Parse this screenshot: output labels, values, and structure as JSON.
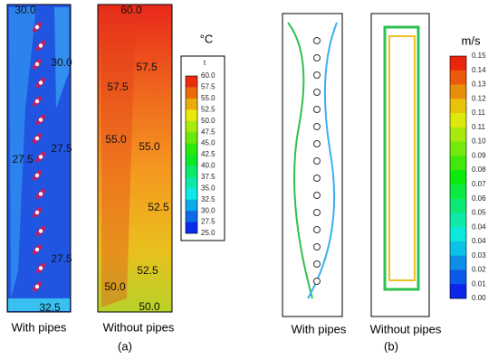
{
  "panels": [
    {
      "tag": "(a)",
      "colorbar": {
        "unit": "°C",
        "title": "t",
        "ticks": [
          "60.0",
          "57.5",
          "55.0",
          "52.5",
          "50.0",
          "47.5",
          "45.0",
          "42.5",
          "40.0",
          "37.5",
          "35.0",
          "32.5",
          "30.0",
          "27.5",
          "25.0"
        ]
      },
      "plots": [
        {
          "caption": "With pipes",
          "contour_labels": [
            "30.0",
            "30.0",
            "27.5",
            "27.5",
            "27.5",
            "32.5"
          ]
        },
        {
          "caption": "Without pipes",
          "contour_labels": [
            "60.0",
            "57.5",
            "57.5",
            "55.0",
            "55.0",
            "52.5",
            "52.5",
            "50.0",
            "50.0"
          ]
        }
      ]
    },
    {
      "tag": "(b)",
      "colorbar": {
        "unit": "m/s",
        "ticks": [
          "0.15",
          "0.14",
          "0.13",
          "0.12",
          "0.11",
          "0.11",
          "0.10",
          "0.09",
          "0.08",
          "0.07",
          "0.06",
          "0.05",
          "0.04",
          "0.04",
          "0.03",
          "0.02",
          "0.01",
          "0.00"
        ]
      },
      "plots": [
        {
          "caption": "With pipes"
        },
        {
          "caption": "Without pipes"
        }
      ]
    }
  ]
}
